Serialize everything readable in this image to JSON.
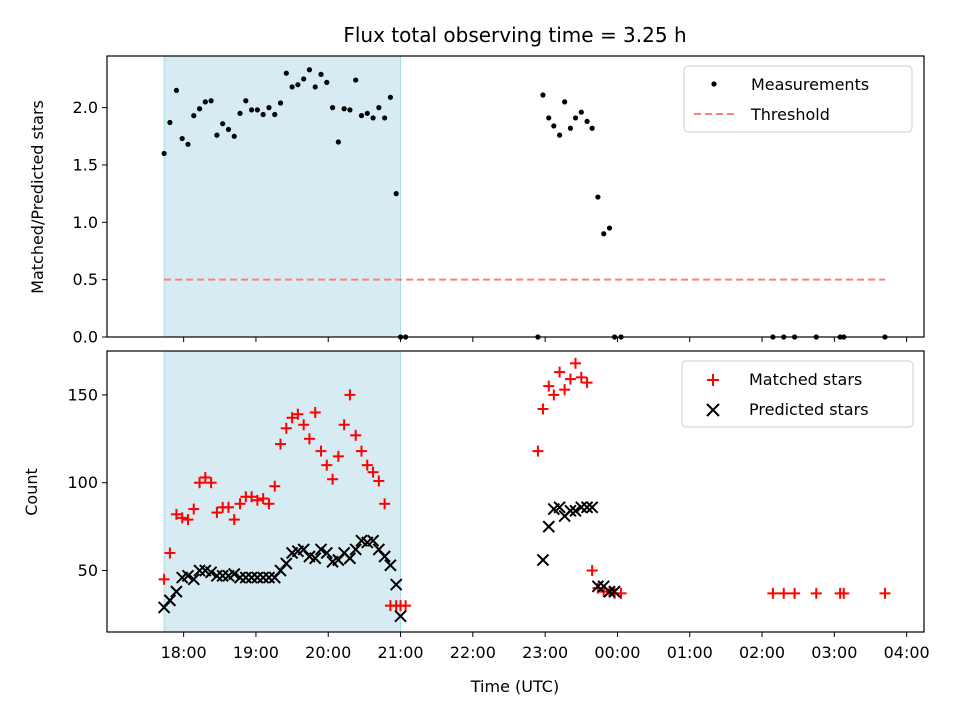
{
  "chart_data": {
    "type": "scatter",
    "title": "Flux total observing time = 3.25 h",
    "xlabel": "Time (UTC)",
    "x_ticks": [
      "18:00",
      "19:00",
      "20:00",
      "21:00",
      "22:00",
      "23:00",
      "00:00",
      "01:00",
      "02:00",
      "03:00",
      "04:00"
    ],
    "x_ticks_hours": [
      18,
      19,
      20,
      21,
      22,
      23,
      24,
      25,
      26,
      27,
      28
    ],
    "xlim_hours": [
      16.94,
      28.24
    ],
    "highlight_span_hours": [
      17.73,
      21.0
    ],
    "colors": {
      "highlight": "#add8e6",
      "measurement": "#000000",
      "threshold": "#ff7f7f",
      "matched": "#ff0000",
      "predicted": "#000000"
    },
    "panels": [
      {
        "ylabel": "Matched/Predicted stars",
        "ylim": [
          0,
          2.45
        ],
        "y_ticks": [
          "0.0",
          "0.5",
          "1.0",
          "1.5",
          "2.0"
        ],
        "y_tick_values": [
          0,
          0.5,
          1,
          1.5,
          2
        ],
        "legend_location": "top-right",
        "legend": [
          "Measurements",
          "Threshold"
        ],
        "series": [
          {
            "name": "Measurements",
            "kind": "dot",
            "x": [
              17.73,
              17.81,
              17.9,
              17.98,
              18.06,
              18.14,
              18.22,
              18.3,
              18.38,
              18.46,
              18.54,
              18.62,
              18.7,
              18.78,
              18.86,
              18.94,
              19.02,
              19.1,
              19.18,
              19.26,
              19.34,
              19.42,
              19.5,
              19.58,
              19.66,
              19.74,
              19.82,
              19.9,
              19.98,
              20.06,
              20.14,
              20.22,
              20.3,
              20.38,
              20.46,
              20.54,
              20.62,
              20.7,
              20.78,
              20.86,
              20.94,
              21.0,
              21.07,
              22.9,
              22.97,
              23.05,
              23.12,
              23.2,
              23.27,
              23.35,
              23.42,
              23.5,
              23.58,
              23.65,
              23.73,
              23.81,
              23.89,
              23.96,
              24.05,
              26.15,
              26.3,
              26.45,
              26.75,
              27.08,
              27.13,
              27.7
            ],
            "y": [
              1.6,
              1.87,
              2.15,
              1.73,
              1.68,
              1.93,
              1.99,
              2.05,
              2.06,
              1.76,
              1.86,
              1.81,
              1.75,
              1.95,
              2.06,
              1.98,
              1.98,
              1.94,
              2.0,
              1.94,
              2.04,
              2.3,
              2.18,
              2.2,
              2.25,
              2.33,
              2.18,
              2.29,
              2.22,
              2.0,
              1.7,
              1.99,
              1.98,
              2.24,
              1.93,
              1.95,
              1.91,
              2.0,
              1.91,
              2.09,
              1.25,
              0.0,
              0.0,
              0.0,
              2.11,
              1.91,
              1.84,
              1.76,
              2.05,
              1.82,
              1.91,
              1.96,
              1.88,
              1.82,
              1.22,
              0.9,
              0.95,
              0.0,
              0.0,
              0.0,
              0.0,
              0.0,
              0.0,
              0.0,
              0.0,
              0.0
            ]
          },
          {
            "name": "Threshold",
            "kind": "hline",
            "y": 0.5,
            "x_range": [
              17.73,
              27.7
            ]
          }
        ]
      },
      {
        "ylabel": "Count",
        "ylim": [
          15,
          175
        ],
        "y_ticks": [
          "50",
          "100",
          "150"
        ],
        "y_tick_values": [
          50,
          100,
          150
        ],
        "legend_location": "top-right",
        "legend": [
          "Matched stars",
          "Predicted stars"
        ],
        "series": [
          {
            "name": "Matched stars",
            "kind": "plus",
            "x": [
              17.73,
              17.81,
              17.9,
              17.98,
              18.06,
              18.14,
              18.22,
              18.3,
              18.38,
              18.46,
              18.54,
              18.62,
              18.7,
              18.78,
              18.86,
              18.94,
              19.02,
              19.1,
              19.18,
              19.26,
              19.34,
              19.42,
              19.5,
              19.58,
              19.66,
              19.74,
              19.82,
              19.9,
              19.98,
              20.06,
              20.14,
              20.22,
              20.3,
              20.38,
              20.46,
              20.54,
              20.62,
              20.7,
              20.78,
              20.86,
              20.94,
              21.0,
              21.07,
              22.9,
              22.97,
              23.05,
              23.12,
              23.2,
              23.27,
              23.35,
              23.42,
              23.5,
              23.58,
              23.65,
              23.73,
              23.81,
              23.89,
              23.96,
              24.05,
              26.15,
              26.3,
              26.45,
              26.75,
              27.08,
              27.13,
              27.7
            ],
            "y": [
              45,
              60,
              82,
              80,
              79,
              85,
              100,
              103,
              100,
              83,
              86,
              86,
              79,
              88,
              92,
              92,
              90,
              91,
              88,
              98,
              122,
              131,
              137,
              139,
              133,
              125,
              140,
              118,
              110,
              102,
              115,
              133,
              150,
              127,
              118,
              110,
              106,
              101,
              88,
              30,
              30,
              30,
              30,
              118,
              142,
              155,
              150,
              163,
              153,
              159,
              168,
              160,
              157,
              50,
              40,
              38,
              38,
              37,
              37,
              37,
              37,
              37,
              37,
              37,
              37,
              37
            ],
            "x_fix": true
          },
          {
            "name": "Predicted stars",
            "kind": "x",
            "x": [
              17.73,
              17.81,
              17.9,
              17.98,
              18.06,
              18.14,
              18.22,
              18.3,
              18.38,
              18.46,
              18.54,
              18.62,
              18.7,
              18.78,
              18.86,
              18.94,
              19.02,
              19.1,
              19.18,
              19.26,
              19.34,
              19.42,
              19.5,
              19.58,
              19.66,
              19.74,
              19.82,
              19.9,
              19.98,
              20.06,
              20.14,
              20.22,
              20.3,
              20.38,
              20.46,
              20.54,
              20.62,
              20.7,
              20.78,
              20.86,
              20.94,
              21.0,
              22.97,
              23.05,
              23.12,
              23.2,
              23.27,
              23.35,
              23.42,
              23.5,
              23.58,
              23.65,
              23.73,
              23.81,
              23.89,
              23.96
            ],
            "y": [
              29,
              33,
              38,
              46,
              47,
              45,
              50,
              50,
              49,
              47,
              47,
              47,
              48,
              46,
              46,
              46,
              46,
              46,
              46,
              46,
              50,
              54,
              60,
              61,
              62,
              58,
              57,
              62,
              60,
              55,
              56,
              60,
              57,
              62,
              67,
              66,
              67,
              62,
              58,
              53,
              42,
              24,
              56,
              75,
              85,
              86,
              81,
              84,
              84,
              86,
              86,
              86,
              41,
              41,
              38,
              38
            ]
          }
        ]
      }
    ]
  }
}
